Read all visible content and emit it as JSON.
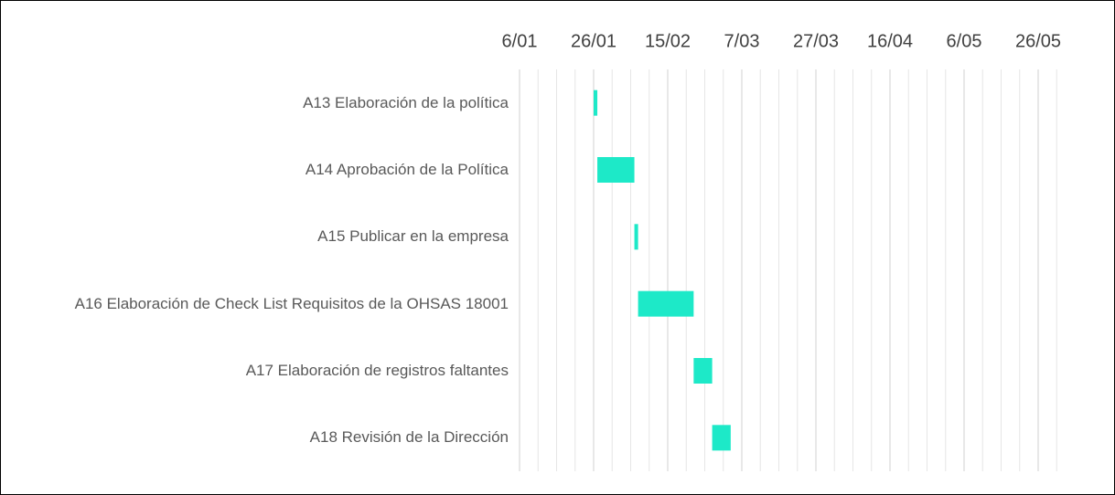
{
  "chart_data": {
    "type": "gantt",
    "categories": [
      "A13 Elaboración de la política",
      "A14 Aprobación de la Política",
      "A15 Publicar en la empresa",
      "A16 Elaboración de Check List Requisitos de la OHSAS 18001",
      "A17 Elaboración de registros faltantes",
      "A18 Revisión de la Dirección"
    ],
    "start": [
      26,
      27,
      37,
      38,
      53,
      58
    ],
    "duration": [
      1,
      10,
      1,
      15,
      5,
      5
    ],
    "color": "#1de9c8",
    "xlim": [
      6,
      154
    ],
    "xticks": [
      {
        "value": 6,
        "label": "6/01"
      },
      {
        "value": 26,
        "label": "26/01"
      },
      {
        "value": 46,
        "label": "15/02"
      },
      {
        "value": 66,
        "label": "7/03"
      },
      {
        "value": 86,
        "label": "27/03"
      },
      {
        "value": 106,
        "label": "16/04"
      },
      {
        "value": 126,
        "label": "6/05"
      },
      {
        "value": 146,
        "label": "26/05"
      }
    ],
    "grid": true,
    "minor_grid": 5
  }
}
